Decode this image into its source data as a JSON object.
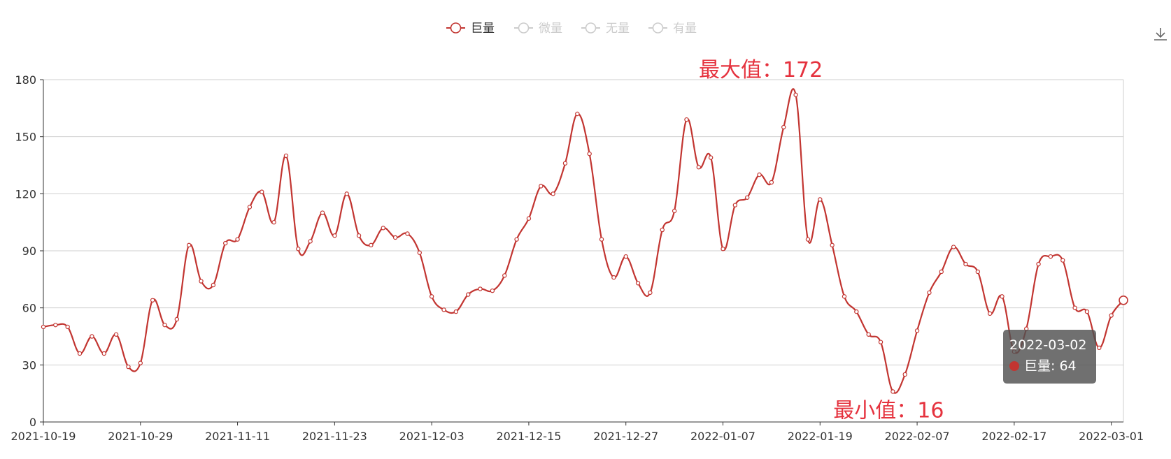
{
  "chart_data": {
    "type": "line",
    "smooth": true,
    "legend": {
      "position": "top-center",
      "items": [
        {
          "label": "巨量",
          "active": true,
          "color": "#c23531"
        },
        {
          "label": "微量",
          "active": false,
          "color": "#cccccc"
        },
        {
          "label": "无量",
          "active": false,
          "color": "#cccccc"
        },
        {
          "label": "有量",
          "active": false,
          "color": "#cccccc"
        }
      ]
    },
    "ylim": [
      0,
      180
    ],
    "yticks": [
      0,
      30,
      60,
      90,
      120,
      150,
      180
    ],
    "x_tick_labels": [
      "2021-10-19",
      "2021-10-29",
      "2021-11-11",
      "2021-11-23",
      "2021-12-03",
      "2021-12-15",
      "2021-12-27",
      "2022-01-07",
      "2022-01-19",
      "2022-02-07",
      "2022-02-17",
      "2022-03-01"
    ],
    "grid": true,
    "series": [
      {
        "name": "巨量",
        "color": "#c23531",
        "values": [
          50,
          51,
          50,
          36,
          45,
          36,
          46,
          29,
          31,
          64,
          51,
          54,
          93,
          74,
          72,
          94,
          96,
          113,
          121,
          105,
          140,
          91,
          95,
          110,
          98,
          120,
          98,
          93,
          102,
          97,
          99,
          89,
          66,
          59,
          58,
          67,
          70,
          69,
          77,
          96,
          107,
          124,
          120,
          136,
          162,
          141,
          96,
          76,
          87,
          73,
          68,
          101,
          111,
          159,
          134,
          139,
          91,
          114,
          118,
          130,
          126,
          155,
          172,
          96,
          117,
          93,
          66,
          58,
          46,
          42,
          16,
          25,
          48,
          68,
          79,
          92,
          83,
          79,
          57,
          66,
          37,
          49,
          83,
          87,
          85,
          60,
          58,
          39,
          56,
          64
        ]
      }
    ],
    "mark_points": [
      {
        "label": "最大值：172",
        "value": 172
      },
      {
        "label": "最小值：16",
        "value": 16
      }
    ],
    "tooltip": {
      "date": "2022-03-02",
      "series": "巨量",
      "value_text": "巨量: 64"
    }
  },
  "toolbox": {
    "icon": "download-icon"
  }
}
